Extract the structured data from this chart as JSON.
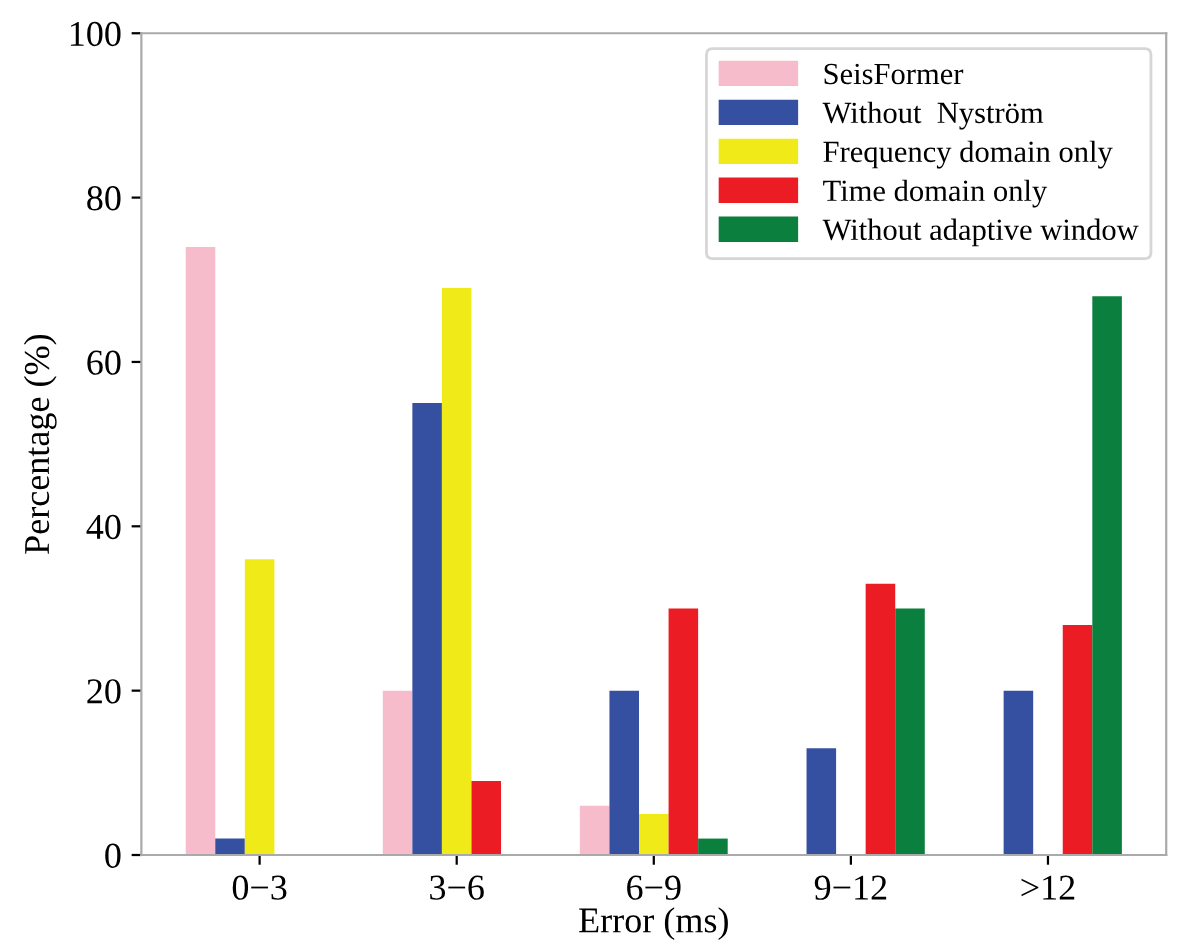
{
  "chart_data": {
    "type": "bar",
    "xlabel": "Error (ms)",
    "ylabel": "Percentage (%)",
    "categories": [
      "0−3",
      "3−6",
      "6−9",
      "9−12",
      ">12"
    ],
    "series": [
      {
        "name": "SeisFormer",
        "color": "#f7bccb",
        "values": [
          74,
          20,
          6,
          0,
          0
        ]
      },
      {
        "name": "Without  Nyström",
        "color": "#3550a0",
        "values": [
          2,
          55,
          20,
          13,
          20
        ]
      },
      {
        "name": "Frequency domain only",
        "color": "#f0eb18",
        "values": [
          36,
          69,
          5,
          0,
          0
        ]
      },
      {
        "name": "Time domain only",
        "color": "#ec1c24",
        "values": [
          0,
          9,
          30,
          33,
          28
        ]
      },
      {
        "name": "Without adaptive window",
        "color": "#0b7f3d",
        "values": [
          0,
          0,
          2,
          30,
          68
        ]
      }
    ],
    "ylim": [
      0,
      100
    ],
    "yticks": [
      0,
      20,
      40,
      60,
      80,
      100
    ],
    "grid": false,
    "legend": "top right"
  }
}
